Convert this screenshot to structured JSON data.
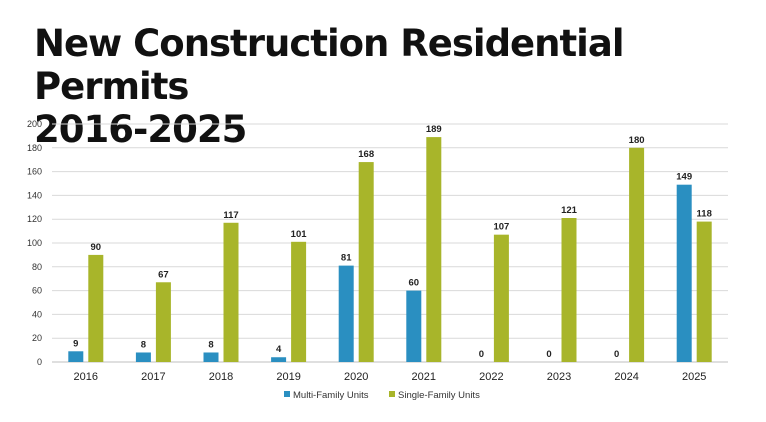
{
  "title_line1": "New Construction Residential Permits",
  "title_line2": "2016-2025",
  "colors": {
    "multi": "#2a8fc1",
    "single": "#a8b52a",
    "grid": "#d9d9d9"
  },
  "chart_data": {
    "type": "bar",
    "title": "New Construction Residential Permits 2016-2025",
    "xlabel": "",
    "ylabel": "",
    "ylim": [
      0,
      200
    ],
    "yticks": [
      0,
      20,
      40,
      60,
      80,
      100,
      120,
      140,
      160,
      180,
      200
    ],
    "grid": true,
    "legend_position": "bottom",
    "categories": [
      "2016",
      "2017",
      "2018",
      "2019",
      "2020",
      "2021",
      "2022",
      "2023",
      "2024",
      "2025"
    ],
    "series": [
      {
        "name": "Multi-Family Units",
        "values": [
          9,
          8,
          8,
          4,
          81,
          60,
          0,
          0,
          0,
          149
        ]
      },
      {
        "name": "Single-Family Units",
        "values": [
          90,
          67,
          117,
          101,
          168,
          189,
          107,
          121,
          180,
          118
        ]
      }
    ]
  }
}
